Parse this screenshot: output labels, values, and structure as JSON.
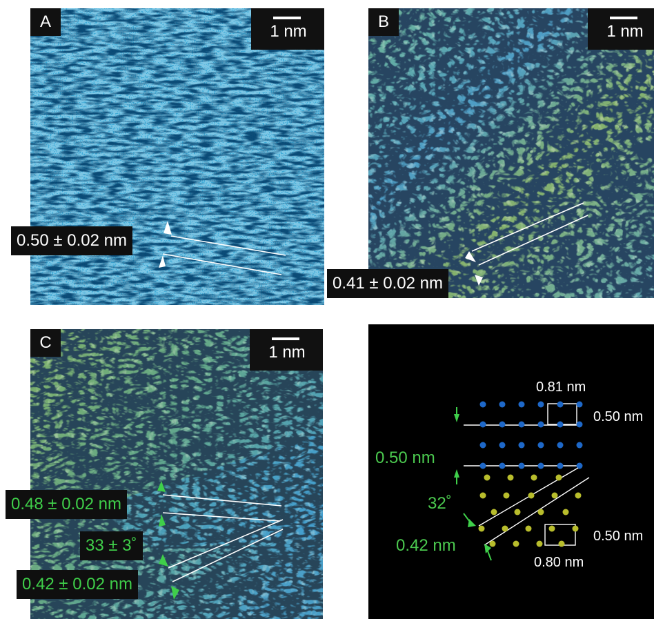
{
  "panels": {
    "a": {
      "letter": "A",
      "scale": "1 nm",
      "spacing": "0.50 ± 0.02 nm"
    },
    "b": {
      "letter": "B",
      "scale": "1 nm",
      "spacing": "0.41 ± 0.02 nm"
    },
    "c": {
      "letter": "C",
      "scale": "1 nm",
      "spacing_top": "0.48 ± 0.02 nm",
      "angle": "33 ± 3˚",
      "spacing_bottom": "0.42 ± 0.02 nm"
    },
    "d": {
      "top_width": "0.81 nm",
      "top_height": "0.50 nm",
      "row_spacing": "0.50 nm",
      "angle": "32˚",
      "diag_spacing": "0.42 nm",
      "bottom_height": "0.50 nm",
      "bottom_width": "0.80 nm"
    }
  },
  "colors": {
    "panel_a_base": "#3aa6d4",
    "panel_b_base": "#5aa58a",
    "panel_c_base": "#6aa775",
    "blue_dot": "#1e68c8",
    "yellow_dot": "#b8bd2c",
    "green_label": "#3fcf4a"
  }
}
